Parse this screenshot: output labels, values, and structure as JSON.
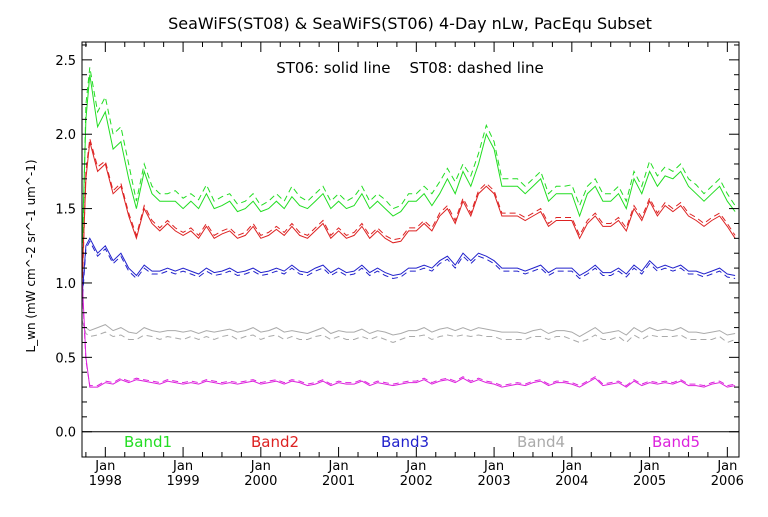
{
  "chart_data": {
    "type": "line",
    "title": "SeaWiFS(ST08) & SeaWiFS(ST06) 4-Day nLw, PacEqu Subset",
    "annotation": "ST06: solid line    ST08: dashed line",
    "ylabel": "L_wn (mW cm^-2 sr^-1 um^-1)",
    "xlim": [
      1997.7,
      2006.15
    ],
    "ylim": [
      -0.17,
      2.62
    ],
    "y_ticks": [
      {
        "value": 0.0,
        "label": "0.0"
      },
      {
        "value": 0.5,
        "label": "0.5"
      },
      {
        "value": 1.0,
        "label": "1.0"
      },
      {
        "value": 1.5,
        "label": "1.5"
      },
      {
        "value": 2.0,
        "label": "2.0"
      },
      {
        "value": 2.5,
        "label": "2.5"
      }
    ],
    "x_ticks": [
      {
        "value": 1998,
        "top": "Jan",
        "bottom": "1998"
      },
      {
        "value": 1999,
        "top": "Jan",
        "bottom": "1999"
      },
      {
        "value": 2000,
        "top": "Jan",
        "bottom": "2000"
      },
      {
        "value": 2001,
        "top": "Jan",
        "bottom": "2001"
      },
      {
        "value": 2002,
        "top": "Jan",
        "bottom": "2002"
      },
      {
        "value": 2003,
        "top": "Jan",
        "bottom": "2003"
      },
      {
        "value": 2004,
        "top": "Jan",
        "bottom": "2004"
      },
      {
        "value": 2005,
        "top": "Jan",
        "bottom": "2005"
      },
      {
        "value": 2006,
        "top": "Jan",
        "bottom": "2006"
      }
    ],
    "grid": false,
    "x": [
      1997.7,
      1997.75,
      1997.8,
      1997.9,
      1998.0,
      1998.1,
      1998.2,
      1998.3,
      1998.4,
      1998.5,
      1998.6,
      1998.7,
      1998.8,
      1998.9,
      1999.0,
      1999.1,
      1999.2,
      1999.3,
      1999.4,
      1999.5,
      1999.6,
      1999.7,
      1999.8,
      1999.9,
      2000.0,
      2000.1,
      2000.2,
      2000.3,
      2000.4,
      2000.5,
      2000.6,
      2000.7,
      2000.8,
      2000.9,
      2001.0,
      2001.1,
      2001.2,
      2001.3,
      2001.4,
      2001.5,
      2001.6,
      2001.7,
      2001.8,
      2001.9,
      2002.0,
      2002.1,
      2002.2,
      2002.3,
      2002.4,
      2002.5,
      2002.6,
      2002.7,
      2002.8,
      2002.9,
      2003.0,
      2003.1,
      2003.2,
      2003.3,
      2003.4,
      2003.5,
      2003.6,
      2003.7,
      2003.8,
      2003.9,
      2004.0,
      2004.1,
      2004.2,
      2004.3,
      2004.4,
      2004.5,
      2004.6,
      2004.7,
      2004.8,
      2004.9,
      2005.0,
      2005.1,
      2005.2,
      2005.3,
      2005.4,
      2005.5,
      2005.6,
      2005.7,
      2005.8,
      2005.9,
      2006.0,
      2006.1
    ],
    "series": [
      {
        "name": "Band1",
        "color": "#22dd22",
        "solid": [
          1.2,
          2.1,
          2.4,
          2.05,
          2.15,
          1.9,
          1.95,
          1.7,
          1.5,
          1.75,
          1.6,
          1.55,
          1.55,
          1.55,
          1.5,
          1.55,
          1.5,
          1.6,
          1.5,
          1.52,
          1.55,
          1.48,
          1.5,
          1.55,
          1.48,
          1.5,
          1.55,
          1.5,
          1.58,
          1.52,
          1.5,
          1.55,
          1.6,
          1.5,
          1.55,
          1.5,
          1.52,
          1.6,
          1.5,
          1.55,
          1.5,
          1.45,
          1.48,
          1.55,
          1.55,
          1.6,
          1.52,
          1.6,
          1.7,
          1.6,
          1.75,
          1.65,
          1.8,
          2.0,
          1.9,
          1.65,
          1.65,
          1.65,
          1.6,
          1.65,
          1.7,
          1.55,
          1.6,
          1.6,
          1.6,
          1.45,
          1.6,
          1.65,
          1.55,
          1.55,
          1.6,
          1.5,
          1.7,
          1.6,
          1.75,
          1.65,
          1.72,
          1.7,
          1.75,
          1.65,
          1.6,
          1.55,
          1.6,
          1.65,
          1.55,
          1.48
        ],
        "dashed": [
          1.0,
          2.2,
          2.45,
          2.15,
          2.25,
          2.0,
          2.05,
          1.8,
          1.55,
          1.8,
          1.65,
          1.6,
          1.6,
          1.62,
          1.57,
          1.6,
          1.56,
          1.66,
          1.55,
          1.58,
          1.6,
          1.53,
          1.55,
          1.6,
          1.52,
          1.55,
          1.6,
          1.55,
          1.65,
          1.58,
          1.55,
          1.6,
          1.65,
          1.55,
          1.6,
          1.55,
          1.58,
          1.65,
          1.55,
          1.6,
          1.56,
          1.5,
          1.52,
          1.6,
          1.6,
          1.65,
          1.6,
          1.68,
          1.77,
          1.68,
          1.8,
          1.72,
          1.87,
          2.06,
          1.95,
          1.7,
          1.7,
          1.7,
          1.65,
          1.7,
          1.75,
          1.6,
          1.65,
          1.65,
          1.66,
          1.52,
          1.65,
          1.7,
          1.6,
          1.6,
          1.65,
          1.55,
          1.75,
          1.65,
          1.82,
          1.72,
          1.78,
          1.75,
          1.8,
          1.7,
          1.66,
          1.6,
          1.65,
          1.7,
          1.6,
          1.52
        ]
      },
      {
        "name": "Band2",
        "color": "#dd2222",
        "solid": [
          1.0,
          1.7,
          1.95,
          1.75,
          1.8,
          1.6,
          1.65,
          1.45,
          1.3,
          1.5,
          1.4,
          1.35,
          1.4,
          1.35,
          1.32,
          1.35,
          1.3,
          1.38,
          1.3,
          1.33,
          1.35,
          1.3,
          1.32,
          1.38,
          1.3,
          1.32,
          1.36,
          1.32,
          1.38,
          1.32,
          1.3,
          1.35,
          1.4,
          1.3,
          1.35,
          1.3,
          1.32,
          1.38,
          1.3,
          1.35,
          1.3,
          1.27,
          1.28,
          1.35,
          1.35,
          1.4,
          1.35,
          1.45,
          1.5,
          1.4,
          1.55,
          1.45,
          1.6,
          1.65,
          1.6,
          1.45,
          1.45,
          1.45,
          1.42,
          1.45,
          1.48,
          1.38,
          1.42,
          1.42,
          1.42,
          1.3,
          1.4,
          1.45,
          1.38,
          1.38,
          1.42,
          1.35,
          1.5,
          1.42,
          1.55,
          1.45,
          1.52,
          1.48,
          1.52,
          1.45,
          1.42,
          1.38,
          1.42,
          1.45,
          1.38,
          1.3
        ],
        "dashed": [
          0.9,
          1.75,
          1.97,
          1.78,
          1.82,
          1.62,
          1.67,
          1.47,
          1.32,
          1.52,
          1.42,
          1.37,
          1.42,
          1.37,
          1.34,
          1.37,
          1.32,
          1.4,
          1.32,
          1.35,
          1.37,
          1.32,
          1.34,
          1.4,
          1.32,
          1.34,
          1.38,
          1.34,
          1.4,
          1.34,
          1.32,
          1.37,
          1.42,
          1.32,
          1.37,
          1.32,
          1.34,
          1.4,
          1.32,
          1.37,
          1.32,
          1.29,
          1.3,
          1.37,
          1.37,
          1.42,
          1.37,
          1.47,
          1.52,
          1.42,
          1.57,
          1.47,
          1.62,
          1.67,
          1.62,
          1.47,
          1.47,
          1.47,
          1.44,
          1.47,
          1.5,
          1.4,
          1.44,
          1.44,
          1.44,
          1.32,
          1.42,
          1.47,
          1.4,
          1.4,
          1.44,
          1.37,
          1.52,
          1.44,
          1.57,
          1.47,
          1.54,
          1.5,
          1.54,
          1.47,
          1.44,
          1.4,
          1.44,
          1.47,
          1.4,
          1.32
        ]
      },
      {
        "name": "Band3",
        "color": "#2222cc",
        "solid": [
          0.9,
          1.25,
          1.3,
          1.2,
          1.25,
          1.15,
          1.2,
          1.1,
          1.05,
          1.12,
          1.08,
          1.08,
          1.1,
          1.08,
          1.1,
          1.08,
          1.06,
          1.1,
          1.07,
          1.08,
          1.1,
          1.07,
          1.08,
          1.1,
          1.07,
          1.08,
          1.1,
          1.08,
          1.12,
          1.08,
          1.07,
          1.1,
          1.12,
          1.07,
          1.1,
          1.07,
          1.08,
          1.12,
          1.07,
          1.1,
          1.07,
          1.05,
          1.06,
          1.1,
          1.1,
          1.12,
          1.1,
          1.15,
          1.18,
          1.12,
          1.2,
          1.15,
          1.2,
          1.18,
          1.15,
          1.1,
          1.1,
          1.1,
          1.08,
          1.1,
          1.12,
          1.07,
          1.1,
          1.1,
          1.1,
          1.05,
          1.08,
          1.12,
          1.07,
          1.07,
          1.1,
          1.06,
          1.12,
          1.08,
          1.15,
          1.1,
          1.12,
          1.1,
          1.12,
          1.08,
          1.08,
          1.06,
          1.08,
          1.1,
          1.06,
          1.05
        ],
        "dashed": [
          0.85,
          1.23,
          1.28,
          1.18,
          1.23,
          1.13,
          1.18,
          1.08,
          1.03,
          1.1,
          1.06,
          1.06,
          1.08,
          1.06,
          1.08,
          1.06,
          1.04,
          1.08,
          1.05,
          1.06,
          1.08,
          1.05,
          1.06,
          1.08,
          1.05,
          1.06,
          1.08,
          1.06,
          1.1,
          1.06,
          1.05,
          1.08,
          1.1,
          1.05,
          1.08,
          1.05,
          1.06,
          1.1,
          1.05,
          1.08,
          1.05,
          1.03,
          1.04,
          1.08,
          1.08,
          1.1,
          1.08,
          1.13,
          1.16,
          1.1,
          1.18,
          1.13,
          1.18,
          1.16,
          1.13,
          1.08,
          1.08,
          1.08,
          1.06,
          1.08,
          1.1,
          1.05,
          1.08,
          1.08,
          1.08,
          1.03,
          1.06,
          1.1,
          1.05,
          1.05,
          1.08,
          1.04,
          1.1,
          1.06,
          1.13,
          1.08,
          1.1,
          1.08,
          1.1,
          1.06,
          1.06,
          1.04,
          1.06,
          1.08,
          1.04,
          1.03
        ]
      },
      {
        "name": "Band4",
        "color": "#aaaaaa",
        "solid": [
          0.7,
          0.7,
          0.68,
          0.7,
          0.72,
          0.68,
          0.7,
          0.67,
          0.66,
          0.7,
          0.68,
          0.67,
          0.68,
          0.68,
          0.67,
          0.68,
          0.66,
          0.68,
          0.67,
          0.68,
          0.69,
          0.67,
          0.68,
          0.7,
          0.67,
          0.68,
          0.7,
          0.67,
          0.68,
          0.67,
          0.66,
          0.68,
          0.7,
          0.66,
          0.68,
          0.67,
          0.67,
          0.69,
          0.66,
          0.68,
          0.67,
          0.65,
          0.66,
          0.68,
          0.68,
          0.7,
          0.67,
          0.69,
          0.7,
          0.68,
          0.7,
          0.68,
          0.7,
          0.69,
          0.68,
          0.67,
          0.67,
          0.67,
          0.66,
          0.68,
          0.69,
          0.66,
          0.68,
          0.68,
          0.67,
          0.64,
          0.67,
          0.7,
          0.66,
          0.67,
          0.68,
          0.65,
          0.7,
          0.67,
          0.7,
          0.68,
          0.69,
          0.68,
          0.7,
          0.67,
          0.67,
          0.66,
          0.67,
          0.68,
          0.65,
          0.66
        ],
        "dashed": [
          0.75,
          0.66,
          0.64,
          0.65,
          0.67,
          0.64,
          0.65,
          0.62,
          0.62,
          0.65,
          0.64,
          0.62,
          0.64,
          0.63,
          0.62,
          0.64,
          0.62,
          0.64,
          0.62,
          0.64,
          0.65,
          0.62,
          0.64,
          0.65,
          0.62,
          0.64,
          0.65,
          0.62,
          0.64,
          0.62,
          0.62,
          0.64,
          0.65,
          0.62,
          0.64,
          0.62,
          0.62,
          0.64,
          0.62,
          0.64,
          0.62,
          0.6,
          0.62,
          0.64,
          0.64,
          0.65,
          0.62,
          0.64,
          0.65,
          0.64,
          0.65,
          0.64,
          0.65,
          0.64,
          0.64,
          0.62,
          0.62,
          0.62,
          0.62,
          0.64,
          0.64,
          0.62,
          0.64,
          0.64,
          0.62,
          0.6,
          0.62,
          0.65,
          0.62,
          0.62,
          0.64,
          0.6,
          0.65,
          0.62,
          0.65,
          0.64,
          0.64,
          0.64,
          0.65,
          0.62,
          0.62,
          0.62,
          0.62,
          0.64,
          0.6,
          0.62
        ]
      },
      {
        "name": "Band5",
        "color": "#dd22dd",
        "solid": [
          1.05,
          0.5,
          0.3,
          0.3,
          0.33,
          0.32,
          0.35,
          0.33,
          0.35,
          0.34,
          0.33,
          0.32,
          0.34,
          0.33,
          0.32,
          0.33,
          0.32,
          0.34,
          0.33,
          0.32,
          0.33,
          0.32,
          0.33,
          0.34,
          0.32,
          0.33,
          0.34,
          0.32,
          0.34,
          0.33,
          0.31,
          0.32,
          0.34,
          0.31,
          0.33,
          0.32,
          0.32,
          0.34,
          0.31,
          0.33,
          0.32,
          0.31,
          0.32,
          0.33,
          0.33,
          0.35,
          0.32,
          0.34,
          0.35,
          0.33,
          0.36,
          0.33,
          0.35,
          0.33,
          0.32,
          0.3,
          0.31,
          0.32,
          0.31,
          0.33,
          0.34,
          0.31,
          0.33,
          0.33,
          0.32,
          0.3,
          0.33,
          0.36,
          0.31,
          0.32,
          0.33,
          0.3,
          0.34,
          0.31,
          0.33,
          0.32,
          0.33,
          0.32,
          0.34,
          0.31,
          0.31,
          0.3,
          0.32,
          0.33,
          0.3,
          0.31
        ],
        "dashed": [
          1.0,
          0.48,
          0.31,
          0.31,
          0.34,
          0.33,
          0.36,
          0.34,
          0.36,
          0.35,
          0.34,
          0.33,
          0.35,
          0.34,
          0.33,
          0.34,
          0.33,
          0.35,
          0.34,
          0.33,
          0.34,
          0.33,
          0.34,
          0.35,
          0.33,
          0.34,
          0.35,
          0.33,
          0.35,
          0.34,
          0.32,
          0.33,
          0.35,
          0.32,
          0.34,
          0.33,
          0.33,
          0.35,
          0.32,
          0.34,
          0.33,
          0.32,
          0.33,
          0.34,
          0.34,
          0.36,
          0.33,
          0.35,
          0.36,
          0.34,
          0.37,
          0.34,
          0.36,
          0.34,
          0.33,
          0.31,
          0.32,
          0.33,
          0.32,
          0.34,
          0.35,
          0.32,
          0.34,
          0.34,
          0.33,
          0.31,
          0.34,
          0.37,
          0.32,
          0.33,
          0.34,
          0.31,
          0.35,
          0.32,
          0.34,
          0.33,
          0.34,
          0.33,
          0.35,
          0.32,
          0.32,
          0.31,
          0.33,
          0.34,
          0.31,
          0.32
        ]
      }
    ],
    "legend": [
      {
        "label": "Band1",
        "color": "#22dd22"
      },
      {
        "label": "Band2",
        "color": "#dd2222"
      },
      {
        "label": "Band3",
        "color": "#2222cc"
      },
      {
        "label": "Band4",
        "color": "#aaaaaa"
      },
      {
        "label": "Band5",
        "color": "#dd22dd"
      }
    ]
  }
}
